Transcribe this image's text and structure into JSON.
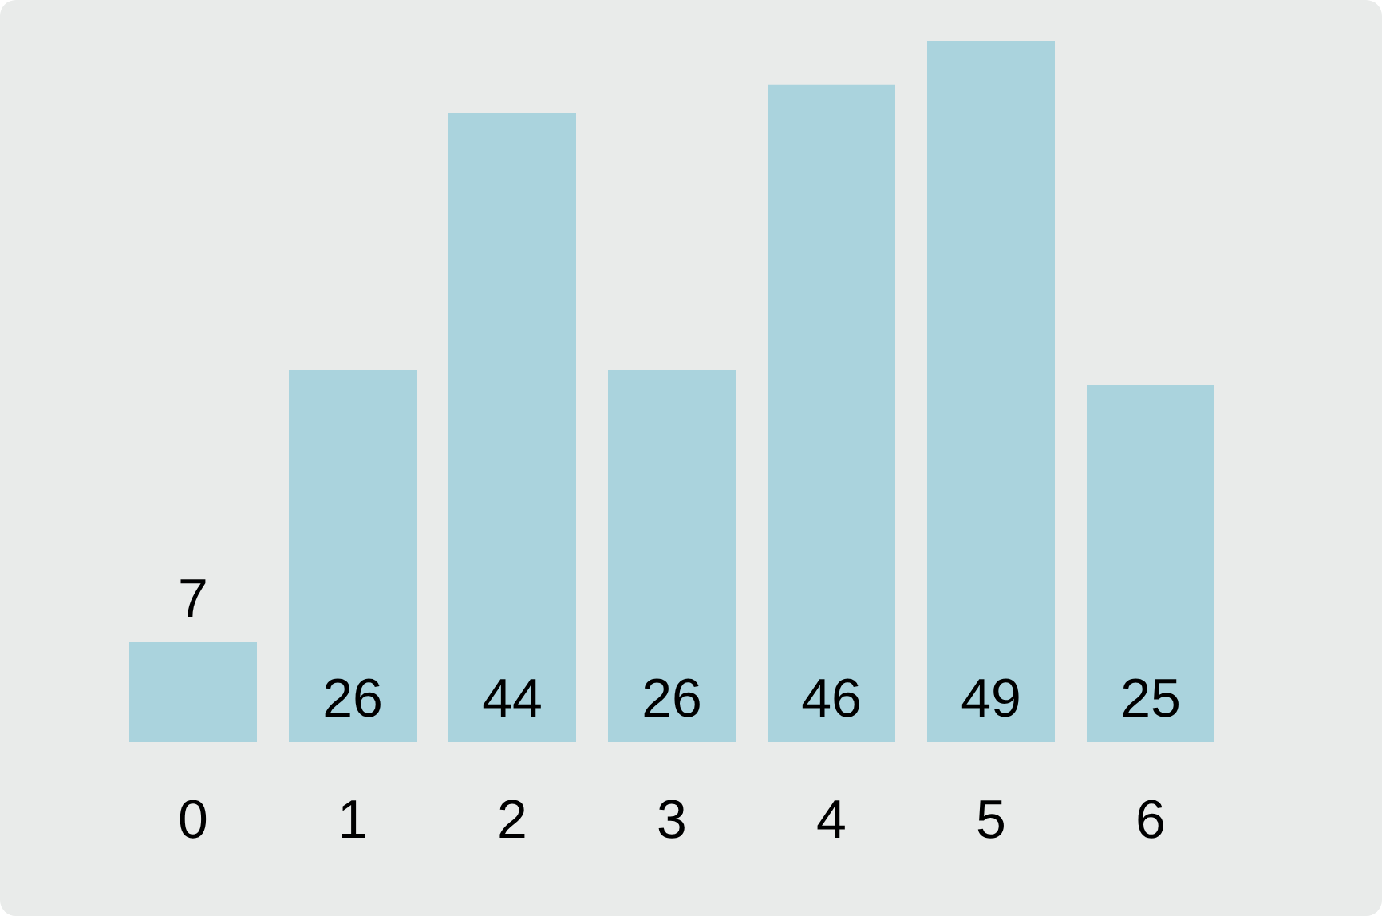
{
  "chart_data": {
    "type": "bar",
    "categories": [
      "0",
      "1",
      "2",
      "3",
      "4",
      "5",
      "6"
    ],
    "values": [
      7,
      26,
      44,
      26,
      46,
      49,
      25
    ],
    "color": "#aad3dd",
    "data_labels": true,
    "grid": false,
    "legend": false
  }
}
